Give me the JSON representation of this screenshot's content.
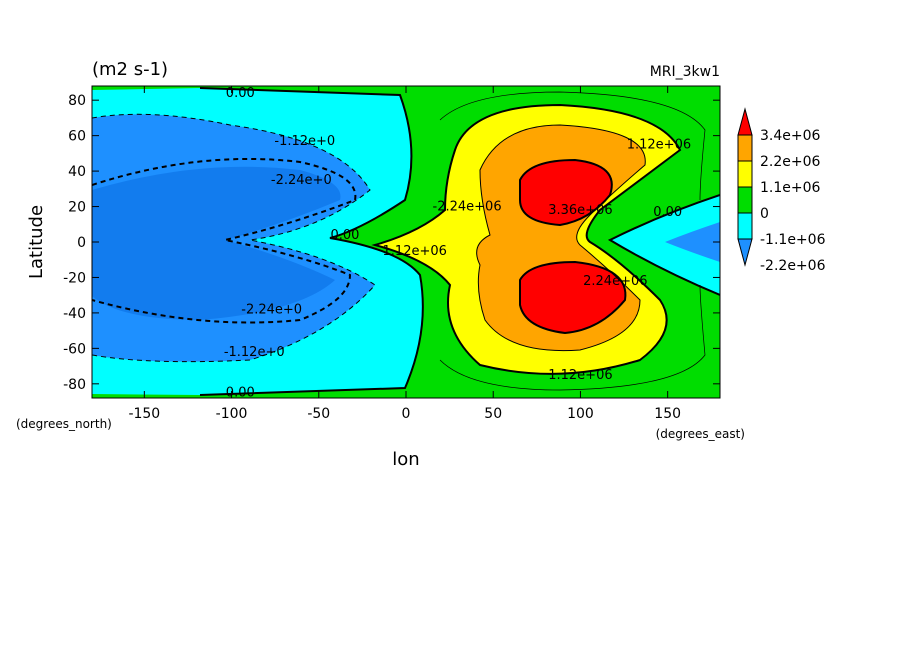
{
  "chart_data": {
    "type": "heatmap",
    "title": "(m2 s-1)",
    "subtitle": "MRI_3kw1",
    "xlabel": "lon",
    "ylabel": "Latitude",
    "x_units": "(degrees_east)",
    "y_units": "(degrees_north)",
    "xlim": [
      -180,
      180
    ],
    "ylim": [
      -88,
      88
    ],
    "x_ticks": [
      -150,
      -100,
      -50,
      0,
      50,
      100,
      150
    ],
    "y_ticks": [
      -80,
      -60,
      -40,
      -20,
      0,
      20,
      40,
      60,
      80
    ],
    "x_tick_labels": [
      "-150",
      "-100",
      "-50",
      "0",
      "50",
      "100",
      "150"
    ],
    "y_tick_labels": [
      "-80",
      "-60",
      "-40",
      "-20",
      "0",
      "20",
      "40",
      "60",
      "80"
    ],
    "legend": {
      "placement": "right",
      "labels": [
        "3.4e+06",
        "2.2e+06",
        "1.1e+06",
        "0",
        "-1.1e+06",
        "-2.2e+06"
      ],
      "colors": [
        "#1e90ff",
        "#00ffff",
        "#00dd00",
        "#ffff00",
        "#ffa500",
        "#ff0000"
      ]
    },
    "contour_labels": [
      {
        "text": "0.00",
        "lon": -95,
        "lat": 84
      },
      {
        "text": "-1.12e+0",
        "lon": -58,
        "lat": 57
      },
      {
        "text": "-2.24e+0",
        "lon": -60,
        "lat": 35
      },
      {
        "text": "0.00",
        "lon": -35,
        "lat": 4
      },
      {
        "text": "1.12e+06",
        "lon": 5,
        "lat": -5
      },
      {
        "text": "-2.24e+06",
        "lon": 35,
        "lat": 20
      },
      {
        "text": "3.36e+06",
        "lon": 100,
        "lat": 18
      },
      {
        "text": "1.12e+06",
        "lon": 145,
        "lat": 55
      },
      {
        "text": "0.00",
        "lon": 150,
        "lat": 17
      },
      {
        "text": "2.24e+06",
        "lon": 120,
        "lat": -22
      },
      {
        "text": "-2.24e+0",
        "lon": -77,
        "lat": -38
      },
      {
        "text": "-1.12e+0",
        "lon": -87,
        "lat": -62
      },
      {
        "text": "0.00",
        "lon": -95,
        "lat": -85
      },
      {
        "text": "1.12e+06",
        "lon": 100,
        "lat": -75
      }
    ]
  }
}
